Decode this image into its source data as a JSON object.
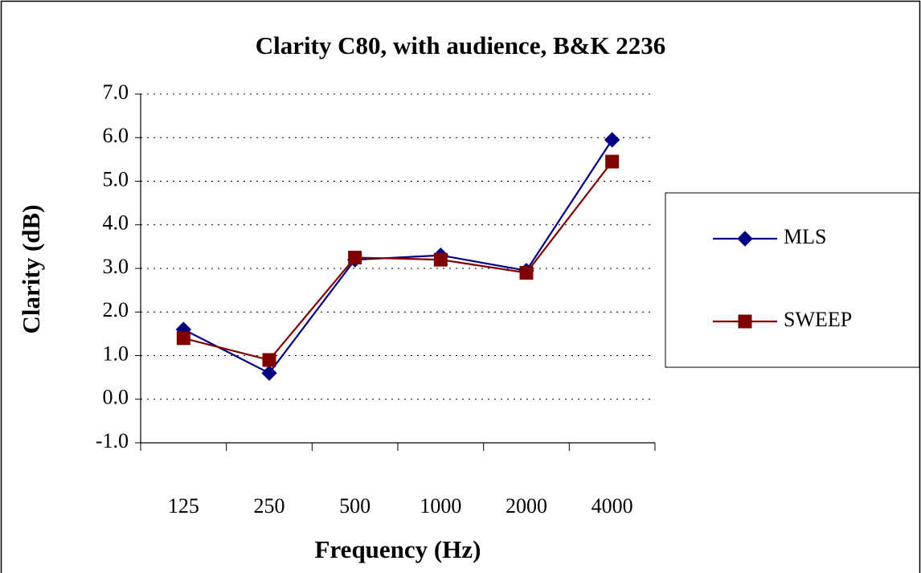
{
  "chart_data": {
    "type": "line",
    "title": "Clarity C80, with audience, B&K 2236",
    "x_label": "Frequency (Hz)",
    "y_label": "Clarity (dB)",
    "categories": [
      "125",
      "250",
      "500",
      "1000",
      "2000",
      "4000"
    ],
    "series": [
      {
        "name": "MLS",
        "color": "#000080",
        "marker": "diamond",
        "values": [
          1.6,
          0.6,
          3.2,
          3.3,
          2.95,
          5.95
        ]
      },
      {
        "name": "SWEEP",
        "color": "#800000",
        "marker": "square",
        "values": [
          1.4,
          0.9,
          3.25,
          3.2,
          2.9,
          5.45
        ]
      }
    ],
    "ylim": [
      -1,
      7
    ],
    "yticks": [
      {
        "value": -1,
        "label": "-1.0"
      },
      {
        "value": 0,
        "label": "0.0"
      },
      {
        "value": 1,
        "label": "1.0"
      },
      {
        "value": 2,
        "label": "2.0"
      },
      {
        "value": 3,
        "label": "3.0"
      },
      {
        "value": 4,
        "label": "4.0"
      },
      {
        "value": 5,
        "label": "5.0"
      },
      {
        "value": 6,
        "label": "6.0"
      },
      {
        "value": 7,
        "label": "7.0"
      }
    ],
    "grid": true,
    "legend": "right"
  }
}
